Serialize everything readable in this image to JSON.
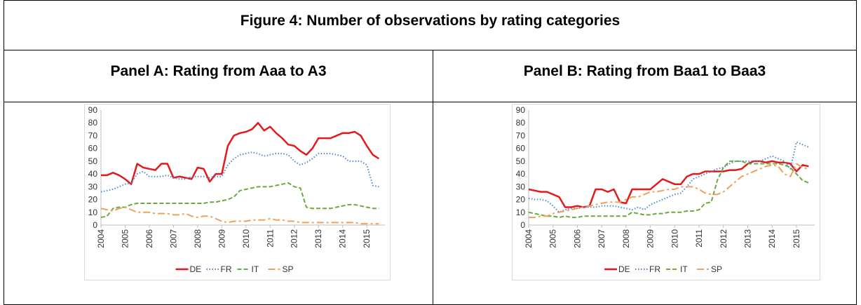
{
  "figure_title": "Figure 4: Number of observations by rating categories",
  "chart_data": [
    {
      "type": "line",
      "title": "Panel A: Rating from Aaa to A3",
      "x": [
        2004,
        2004.25,
        2004.5,
        2004.75,
        2005,
        2005.25,
        2005.5,
        2005.75,
        2006,
        2006.25,
        2006.5,
        2006.75,
        2007,
        2007.25,
        2007.5,
        2007.75,
        2008,
        2008.25,
        2008.5,
        2008.75,
        2009,
        2009.25,
        2009.5,
        2009.75,
        2010,
        2010.25,
        2010.5,
        2010.75,
        2011,
        2011.25,
        2011.5,
        2011.75,
        2012,
        2012.25,
        2012.5,
        2012.75,
        2013,
        2013.25,
        2013.5,
        2013.75,
        2014,
        2014.25,
        2014.5,
        2014.75,
        2015,
        2015.25,
        2015.5
      ],
      "xlim": [
        2004,
        2015.75
      ],
      "xticks": [
        2004,
        2005,
        2006,
        2007,
        2008,
        2009,
        2010,
        2011,
        2012,
        2013,
        2014,
        2015
      ],
      "ylim": [
        0,
        90
      ],
      "yticks": [
        0,
        10,
        20,
        30,
        40,
        50,
        60,
        70,
        80,
        90
      ],
      "legend": "bottom",
      "series": [
        {
          "name": "DE",
          "color": "#e3191c",
          "line_style": "solid",
          "values": [
            39,
            39,
            41,
            39,
            36,
            32,
            48,
            45,
            44,
            43,
            48,
            48,
            37,
            38,
            37,
            36,
            45,
            44,
            34,
            40,
            40,
            62,
            70,
            72,
            73,
            75,
            80,
            74,
            77,
            72,
            68,
            63,
            62,
            58,
            55,
            60,
            68,
            68,
            68,
            70,
            72,
            72,
            73,
            70,
            62,
            55,
            52
          ]
        },
        {
          "name": "FR",
          "color": "#4a8ad4",
          "line_style": "dotted",
          "values": [
            26,
            27,
            28,
            30,
            32,
            33,
            40,
            42,
            38,
            38,
            38,
            39,
            37,
            36,
            36,
            38,
            38,
            38,
            37,
            38,
            38,
            47,
            52,
            55,
            56,
            57,
            56,
            54,
            55,
            56,
            56,
            55,
            50,
            47,
            49,
            52,
            56,
            56,
            56,
            55,
            54,
            50,
            50,
            50,
            47,
            31,
            30
          ]
        },
        {
          "name": "IT",
          "color": "#6aab3c",
          "line_style": "dashed",
          "values": [
            6,
            7,
            13,
            14,
            14,
            16,
            17,
            17,
            17,
            17,
            17,
            17,
            17,
            17,
            17,
            17,
            17,
            17,
            18,
            18,
            19,
            20,
            22,
            27,
            28,
            29,
            30,
            30,
            30,
            31,
            32,
            33,
            30,
            29,
            14,
            13,
            13,
            13,
            13,
            14,
            15,
            16,
            16,
            15,
            14,
            13,
            13
          ]
        },
        {
          "name": "SP",
          "color": "#f0a05a",
          "line_style": "dashdot",
          "values": [
            13,
            12,
            11,
            13,
            14,
            12,
            10,
            10,
            10,
            9,
            9,
            9,
            8,
            8,
            9,
            7,
            6,
            7,
            7,
            5,
            3,
            2,
            3,
            3,
            3,
            4,
            4,
            4,
            5,
            4,
            4,
            3,
            3,
            2,
            2,
            2,
            2,
            2,
            2,
            2,
            2,
            2,
            2,
            1,
            1,
            1,
            1
          ]
        }
      ]
    },
    {
      "type": "line",
      "title": "Panel B: Rating from Baa1 to Baa3",
      "x": [
        2004,
        2004.25,
        2004.5,
        2004.75,
        2005,
        2005.25,
        2005.5,
        2005.75,
        2006,
        2006.25,
        2006.5,
        2006.75,
        2007,
        2007.25,
        2007.5,
        2007.75,
        2008,
        2008.25,
        2008.5,
        2008.75,
        2009,
        2009.25,
        2009.5,
        2009.75,
        2010,
        2010.25,
        2010.5,
        2010.75,
        2011,
        2011.25,
        2011.5,
        2011.75,
        2012,
        2012.25,
        2012.5,
        2012.75,
        2013,
        2013.25,
        2013.5,
        2013.75,
        2014,
        2014.25,
        2014.5,
        2014.75,
        2015,
        2015.25,
        2015.5
      ],
      "xlim": [
        2004,
        2015.75
      ],
      "xticks": [
        2004,
        2005,
        2006,
        2007,
        2008,
        2009,
        2010,
        2011,
        2012,
        2013,
        2014,
        2015
      ],
      "ylim": [
        0,
        90
      ],
      "yticks": [
        0,
        10,
        20,
        30,
        40,
        50,
        60,
        70,
        80,
        90
      ],
      "legend": "bottom",
      "series": [
        {
          "name": "DE",
          "color": "#e3191c",
          "line_style": "solid",
          "values": [
            28,
            27,
            26,
            26,
            24,
            22,
            14,
            14,
            15,
            14,
            15,
            28,
            28,
            26,
            28,
            18,
            17,
            28,
            28,
            28,
            28,
            32,
            36,
            34,
            32,
            32,
            38,
            40,
            40,
            42,
            42,
            42,
            42,
            43,
            43,
            44,
            48,
            50,
            50,
            49,
            50,
            49,
            49,
            48,
            42,
            47,
            46
          ]
        },
        {
          "name": "FR",
          "color": "#4a8ad4",
          "line_style": "dotted",
          "values": [
            21,
            20,
            20,
            19,
            15,
            10,
            12,
            13,
            13,
            14,
            14,
            14,
            15,
            15,
            15,
            14,
            13,
            12,
            14,
            12,
            16,
            18,
            20,
            22,
            24,
            25,
            30,
            36,
            38,
            40,
            42,
            44,
            45,
            48,
            50,
            50,
            50,
            50,
            50,
            52,
            54,
            52,
            50,
            44,
            65,
            63,
            61
          ]
        },
        {
          "name": "IT",
          "color": "#6aab3c",
          "line_style": "dashed",
          "values": [
            10,
            9,
            8,
            7,
            7,
            6,
            7,
            6,
            6,
            7,
            7,
            7,
            7,
            7,
            7,
            7,
            7,
            10,
            9,
            8,
            8,
            9,
            9,
            10,
            10,
            10,
            11,
            11,
            12,
            17,
            18,
            35,
            45,
            50,
            50,
            50,
            48,
            48,
            48,
            48,
            48,
            48,
            47,
            45,
            40,
            35,
            33
          ]
        },
        {
          "name": "SP",
          "color": "#f0a05a",
          "line_style": "dashdot",
          "values": [
            6,
            6,
            7,
            7,
            9,
            10,
            11,
            12,
            13,
            14,
            15,
            16,
            17,
            18,
            18,
            18,
            20,
            22,
            22,
            24,
            26,
            26,
            27,
            28,
            28,
            30,
            30,
            30,
            28,
            25,
            24,
            24,
            26,
            30,
            34,
            38,
            40,
            42,
            44,
            46,
            47,
            46,
            40,
            38,
            48,
            45,
            44
          ]
        }
      ]
    }
  ]
}
